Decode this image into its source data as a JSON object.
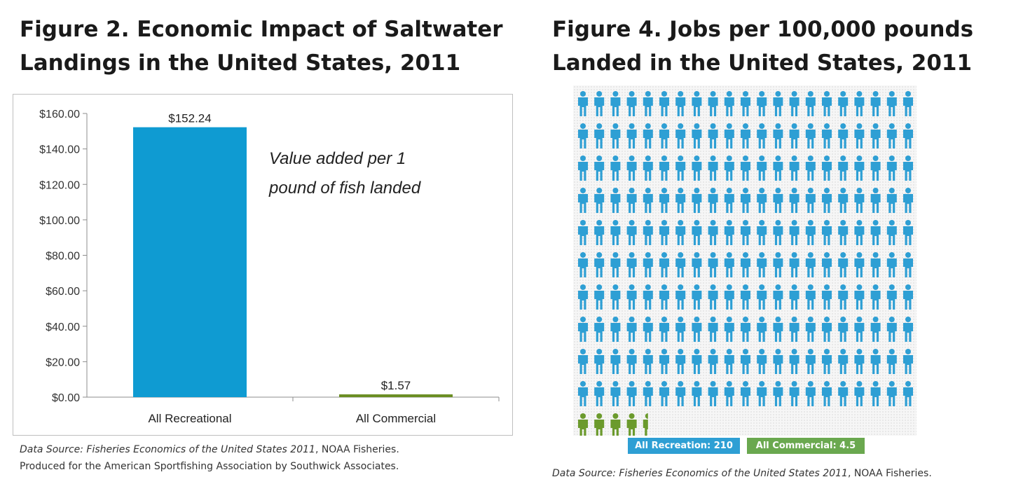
{
  "figures": {
    "fig2": {
      "title_line1": "Figure 2. Economic Impact of Saltwater",
      "title_line2": "Landings in the United States, 2011",
      "source_italic": "Data Source: Fisheries Economics of the United States 2011",
      "source_rest": ", NOAA Fisheries.",
      "source_line2": "Produced for the American Sportfishing Association by Southwick Associates."
    },
    "fig4": {
      "title_line1": "Figure 4. Jobs per 100,000 pounds",
      "title_line2": "Landed in the United States, 2011",
      "source_italic": "Data Source: Fisheries Economics of the United States 2011",
      "source_rest": ", NOAA Fisheries.",
      "legend": {
        "recreation": "All Recreation: 210",
        "commercial": "All Commercial: 4.5"
      }
    }
  },
  "chart_data": [
    {
      "type": "bar",
      "categories": [
        "All Recreational",
        "All Commercial"
      ],
      "values": [
        152.24,
        1.57
      ],
      "data_labels": [
        "$152.24",
        "$1.57"
      ],
      "bar_colors": [
        "#0f9bd2",
        "#6b8e23"
      ],
      "annotation_line1": "Value added per 1",
      "annotation_line2": "pound of fish landed",
      "ylim": [
        0,
        160
      ],
      "yticks": [
        0,
        20,
        40,
        60,
        80,
        100,
        120,
        140,
        160
      ],
      "ytick_labels": [
        "$0.00",
        "$20.00",
        "$40.00",
        "$60.00",
        "$80.00",
        "$100.00",
        "$120.00",
        "$140.00",
        "$160.00"
      ],
      "grid": false
    },
    {
      "type": "pictograph",
      "series": [
        {
          "name": "All Recreation",
          "value": 210,
          "color": "#2e9fd4",
          "icon": "person-icon"
        },
        {
          "name": "All Commercial",
          "value": 4.5,
          "color": "#6b9a2c",
          "icon": "person-icon"
        }
      ],
      "icons_per_row": 21
    }
  ]
}
